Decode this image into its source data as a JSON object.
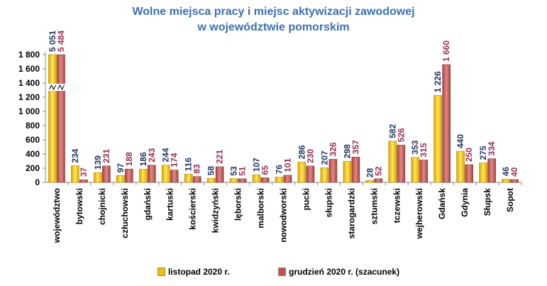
{
  "chart_data": {
    "type": "bar",
    "title_line1": "Wolne miejsca pracy i miejsc aktywizacji zawodowej",
    "title_line2": "w województwie pomorskim",
    "yticks": [
      "0",
      "200",
      "400",
      "600",
      "800",
      "1 000",
      "1 200",
      "1 400",
      "1 600",
      "1 800"
    ],
    "ylim": [
      0,
      1800
    ],
    "axis_break": true,
    "grid": false,
    "legend_position": "bottom",
    "categories": [
      "województwo",
      "bytowski",
      "chojnicki",
      "człuchowski",
      "gdański",
      "kartuski",
      "kościerski",
      "kwidzyński",
      "lęborski",
      "malborski",
      "nowodworski",
      "pucki",
      "słupski",
      "starogardzki",
      "sztumski",
      "tczewski",
      "wejherowski",
      "Gdańsk",
      "Gdynia",
      "Słupsk",
      "Sopot"
    ],
    "series": [
      {
        "name": "listopad 2020 r.",
        "color": "#f2c200",
        "label_color": "#1f3864",
        "values": [
          5051,
          234,
          139,
          97,
          186,
          244,
          116,
          58,
          53,
          107,
          76,
          286,
          207,
          298,
          28,
          582,
          353,
          1226,
          440,
          275,
          46
        ],
        "labels": [
          "5 051",
          "234",
          "139",
          "97",
          "186",
          "244",
          "116",
          "58",
          "53",
          "107",
          "76",
          "286",
          "207",
          "298",
          "28",
          "582",
          "353",
          "1 226",
          "440",
          "275",
          "46"
        ]
      },
      {
        "name": "grudzień 2020  r. (szacunek)",
        "color": "#c0504d",
        "label_color": "#9b2d4f",
        "values": [
          5484,
          37,
          231,
          188,
          243,
          174,
          83,
          221,
          51,
          65,
          101,
          230,
          326,
          357,
          52,
          526,
          315,
          1660,
          250,
          334,
          40
        ],
        "labels": [
          "5 484",
          "37",
          "231",
          "188",
          "243",
          "174",
          "83",
          "221",
          "51",
          "65",
          "101",
          "230",
          "326",
          "357",
          "52",
          "526",
          "315",
          "1 660",
          "250",
          "334",
          "40"
        ]
      }
    ]
  }
}
